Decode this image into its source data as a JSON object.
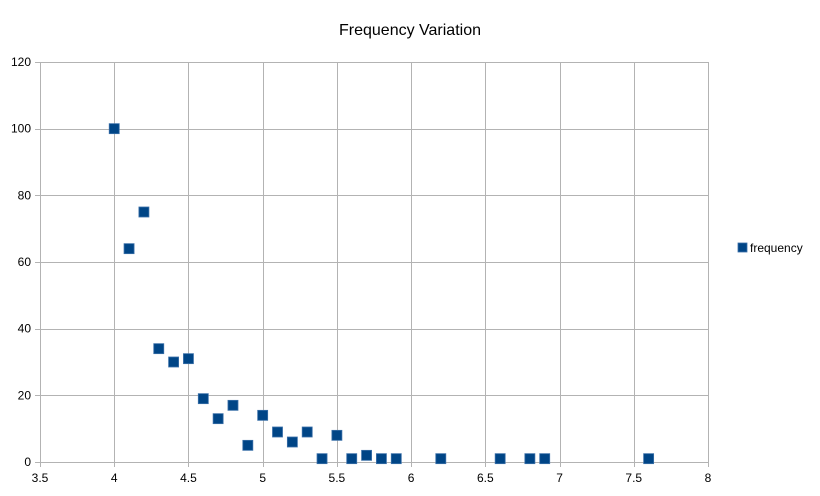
{
  "chart_data": {
    "type": "scatter",
    "title": "Frequency Variation",
    "xlabel": "",
    "ylabel": "",
    "xlim": [
      3.5,
      8
    ],
    "ylim": [
      0,
      120
    ],
    "x_ticks": [
      3.5,
      4,
      4.5,
      5,
      5.5,
      6,
      6.5,
      7,
      7.5,
      8
    ],
    "x_tick_labels": [
      "3.5",
      "4",
      "4.5",
      "5",
      "5.5",
      "6",
      "6.5",
      "7",
      "7.5",
      "8"
    ],
    "y_ticks": [
      0,
      20,
      40,
      60,
      80,
      100,
      120
    ],
    "y_tick_labels": [
      "0",
      "20",
      "40",
      "60",
      "80",
      "100",
      "120"
    ],
    "grid": true,
    "legend_position": "right",
    "series": [
      {
        "name": "frequency",
        "color": "#004586",
        "marker": "square",
        "points": [
          [
            4.0,
            100
          ],
          [
            4.1,
            64
          ],
          [
            4.2,
            75
          ],
          [
            4.3,
            34
          ],
          [
            4.4,
            30
          ],
          [
            4.5,
            31
          ],
          [
            4.6,
            19
          ],
          [
            4.7,
            13
          ],
          [
            4.8,
            17
          ],
          [
            4.9,
            5
          ],
          [
            5.0,
            14
          ],
          [
            5.1,
            9
          ],
          [
            5.2,
            6
          ],
          [
            5.3,
            9
          ],
          [
            5.4,
            1
          ],
          [
            5.5,
            8
          ],
          [
            5.6,
            1
          ],
          [
            5.7,
            2
          ],
          [
            5.8,
            1
          ],
          [
            5.9,
            1
          ],
          [
            6.2,
            1
          ],
          [
            6.6,
            1
          ],
          [
            6.8,
            1
          ],
          [
            6.9,
            1
          ],
          [
            7.6,
            1
          ]
        ]
      }
    ]
  }
}
